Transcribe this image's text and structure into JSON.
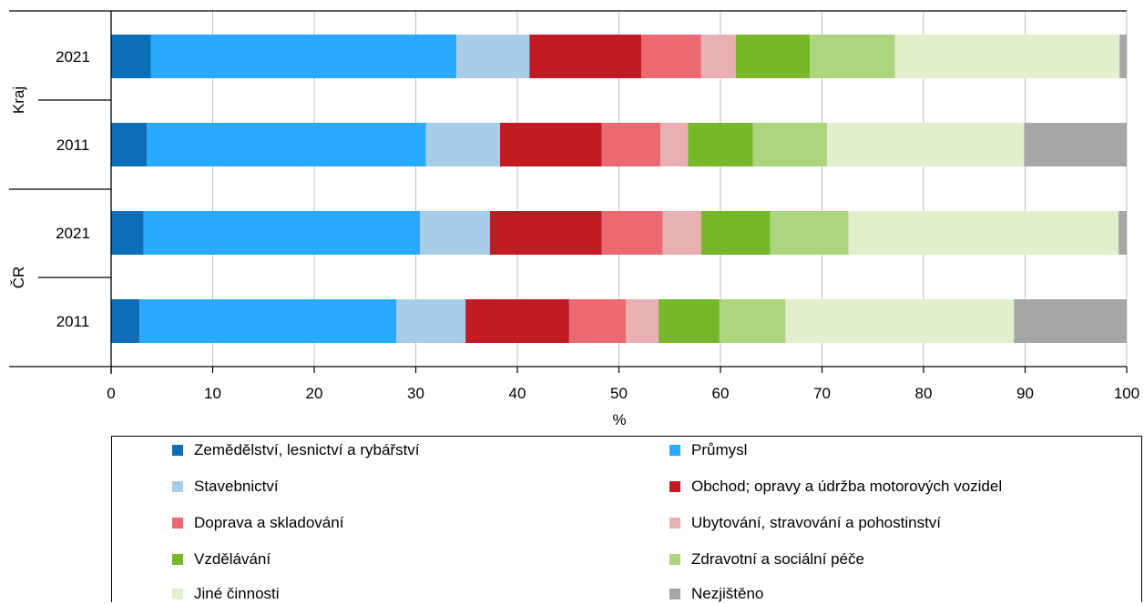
{
  "chart_data": {
    "type": "bar",
    "orientation": "horizontal",
    "stacked": true,
    "xlabel": "%",
    "xlim": [
      0,
      100
    ],
    "xticks": [
      0,
      10,
      20,
      30,
      40,
      50,
      60,
      70,
      80,
      90,
      100
    ],
    "grid": true,
    "legend_position": "bottom",
    "groups": [
      {
        "label": "Kraj",
        "rows": [
          "2021",
          "2011"
        ]
      },
      {
        "label": "ČR",
        "rows": [
          "2021",
          "2011"
        ]
      }
    ],
    "categories": [
      "Kraj 2021",
      "Kraj 2011",
      "ČR 2021",
      "ČR 2011"
    ],
    "series": [
      {
        "name": "Zemědělství, lesnictví a rybářství",
        "color": "#0b6eb7",
        "values": [
          3.9,
          3.5,
          3.2,
          2.8
        ]
      },
      {
        "name": "Průmysl",
        "color": "#29a9ff",
        "values": [
          30.1,
          27.5,
          27.2,
          25.3
        ]
      },
      {
        "name": "Stavebnictví",
        "color": "#a8cde8",
        "values": [
          7.2,
          7.3,
          6.9,
          6.8
        ]
      },
      {
        "name": "Obchod; opravy a údržba motorových vozidel",
        "color": "#c11b24",
        "values": [
          11.0,
          10.0,
          11.0,
          10.2
        ]
      },
      {
        "name": "Doprava a skladování",
        "color": "#eb6a71",
        "values": [
          5.9,
          5.8,
          6.0,
          5.6
        ]
      },
      {
        "name": "Ubytování, stravování a pohostinství",
        "color": "#e9b0b3",
        "values": [
          3.4,
          2.7,
          3.8,
          3.2
        ]
      },
      {
        "name": "Vzdělávání",
        "color": "#76b82a",
        "values": [
          7.3,
          6.4,
          6.8,
          6.0
        ]
      },
      {
        "name": "Zdravotní a sociální péče",
        "color": "#acd57e",
        "values": [
          8.4,
          7.3,
          7.7,
          6.5
        ]
      },
      {
        "name": "Jiné činnosti",
        "color": "#e2efcd",
        "values": [
          22.1,
          19.4,
          26.6,
          22.5
        ]
      },
      {
        "name": "Nezjištěno",
        "color": "#a6a6a6",
        "values": [
          0.7,
          10.1,
          0.8,
          11.1
        ]
      }
    ]
  }
}
